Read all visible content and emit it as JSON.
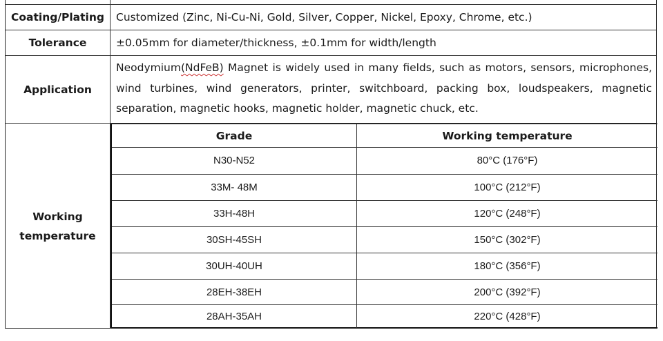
{
  "rows": {
    "coating": {
      "label": "Coating/Plating",
      "value": "Customized (Zinc, Ni-Cu-Ni, Gold, Silver, Copper, Nickel, Epoxy, Chrome, etc.)"
    },
    "tolerance": {
      "label": "Tolerance",
      "value": "±0.05mm for diameter/thickness, ±0.1mm for width/length"
    },
    "application": {
      "label": "Application",
      "value_pre": "Neodymium",
      "value_marked": "(NdFeB)",
      "value_post": " Magnet is widely used in many fields, such as motors, sensors, microphones, wind turbines, wind generators, printer, switchboard, packing box, loudspeakers, magnetic separation, magnetic hooks, magnetic holder, magnetic chuck, etc."
    },
    "working": {
      "label_line1": "Working",
      "label_line2": "temperature"
    }
  },
  "temp_table": {
    "headers": [
      "Grade",
      "Working temperature"
    ],
    "rows": [
      [
        "N30-N52",
        "80°C (176°F)"
      ],
      [
        "33M- 48M",
        "100°C (212°F)"
      ],
      [
        "33H-48H",
        "120°C (248°F)"
      ],
      [
        "30SH-45SH",
        "150°C (302°F)"
      ],
      [
        "30UH-40UH",
        "180°C (356°F)"
      ],
      [
        "28EH-38EH",
        "200°C (392°F)"
      ],
      [
        "28AH-35AH",
        "220°C (428°F)"
      ]
    ]
  }
}
